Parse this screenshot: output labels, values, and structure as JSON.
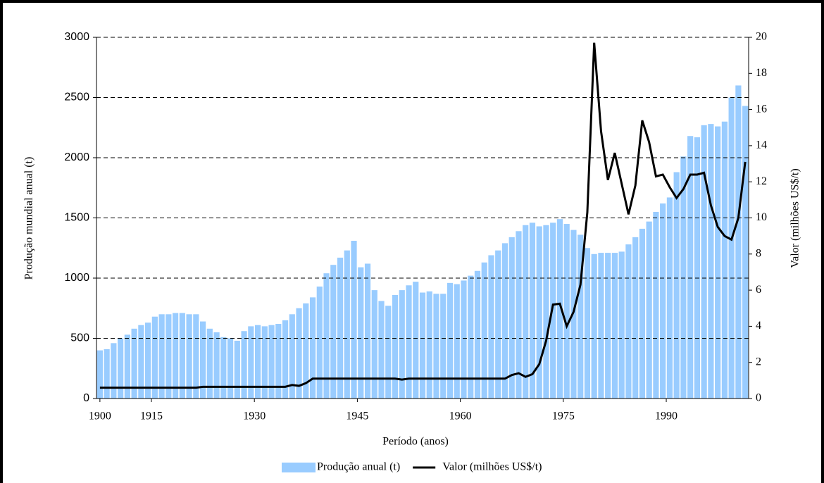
{
  "chart_data": {
    "type": "bar-line",
    "xlabel": "Período (anos)",
    "ylabel": "Produção mundial anual (t)",
    "y2label": "Valor  (milhões US$/t)",
    "categories": [
      "1900",
      null,
      null,
      null,
      null,
      null,
      null,
      null,
      "1915",
      null,
      null,
      null,
      null,
      null,
      null,
      null,
      null,
      null,
      null,
      null,
      null,
      null,
      null,
      "1930",
      null,
      null,
      null,
      null,
      null,
      null,
      null,
      null,
      null,
      null,
      null,
      null,
      null,
      null,
      "1945",
      null,
      null,
      null,
      null,
      null,
      null,
      null,
      null,
      null,
      null,
      null,
      null,
      null,
      null,
      "1960",
      null,
      null,
      null,
      null,
      null,
      null,
      null,
      null,
      null,
      null,
      null,
      null,
      null,
      null,
      "1975",
      null,
      null,
      null,
      null,
      null,
      null,
      null,
      null,
      null,
      null,
      null,
      null,
      null,
      null,
      "1990",
      null,
      null,
      null,
      null,
      null,
      null,
      null,
      null,
      null,
      null,
      null
    ],
    "series": [
      {
        "name": "Produção anual (t)",
        "color": "#99ccff",
        "kind": "bar",
        "values": [
          400,
          410,
          460,
          500,
          530,
          580,
          610,
          630,
          680,
          700,
          700,
          710,
          710,
          700,
          700,
          640,
          580,
          550,
          510,
          500,
          480,
          560,
          600,
          610,
          600,
          610,
          620,
          650,
          700,
          750,
          790,
          840,
          930,
          1040,
          1110,
          1170,
          1230,
          1310,
          1090,
          1120,
          900,
          810,
          770,
          860,
          900,
          940,
          970,
          880,
          890,
          870,
          870,
          960,
          950,
          980,
          1020,
          1060,
          1130,
          1190,
          1230,
          1290,
          1340,
          1390,
          1440,
          1460,
          1430,
          1440,
          1460,
          1490,
          1450,
          1400,
          1360,
          1250,
          1200,
          1210,
          1210,
          1210,
          1220,
          1280,
          1340,
          1410,
          1470,
          1550,
          1620,
          1670,
          1880,
          2010,
          2180,
          2170,
          2270,
          2280,
          2260,
          2300,
          2500,
          2600,
          2430
        ]
      },
      {
        "name": "Valor (milhões US$/t)",
        "color": "#000000",
        "kind": "line",
        "axis": "y2",
        "values": [
          0.6,
          0.6,
          0.6,
          0.6,
          0.6,
          0.6,
          0.6,
          0.6,
          0.6,
          0.6,
          0.6,
          0.6,
          0.6,
          0.6,
          0.6,
          0.65,
          0.65,
          0.65,
          0.65,
          0.65,
          0.65,
          0.65,
          0.65,
          0.65,
          0.65,
          0.65,
          0.65,
          0.65,
          0.75,
          0.7,
          0.85,
          1.1,
          1.1,
          1.1,
          1.1,
          1.1,
          1.1,
          1.1,
          1.1,
          1.1,
          1.1,
          1.1,
          1.1,
          1.1,
          1.05,
          1.1,
          1.1,
          1.1,
          1.1,
          1.1,
          1.1,
          1.1,
          1.1,
          1.1,
          1.1,
          1.1,
          1.1,
          1.1,
          1.1,
          1.1,
          1.3,
          1.4,
          1.2,
          1.35,
          1.9,
          3.2,
          5.2,
          5.25,
          4.0,
          4.8,
          6.3,
          10.3,
          19.7,
          14.8,
          12.1,
          13.6,
          11.9,
          10.2,
          11.8,
          15.4,
          14.2,
          12.3,
          12.4,
          11.7,
          11.1,
          11.6,
          12.4,
          12.4,
          12.5,
          10.7,
          9.5,
          9.0,
          8.8,
          10.0,
          13.1
        ]
      }
    ],
    "ylim": [
      0,
      3000
    ],
    "yticks": [
      0,
      500,
      1000,
      1500,
      2000,
      2500,
      3000
    ],
    "y2lim": [
      0,
      20
    ],
    "y2ticks": [
      0,
      2,
      4,
      6,
      8,
      10,
      12,
      14,
      16,
      18,
      20
    ],
    "grid": true,
    "legend": "bottom"
  }
}
